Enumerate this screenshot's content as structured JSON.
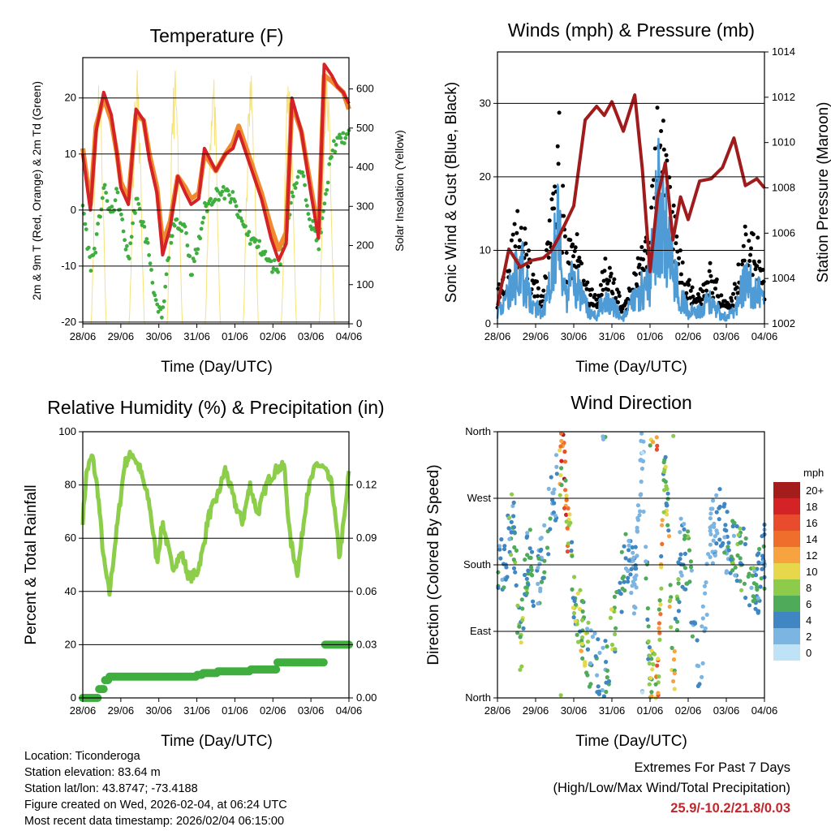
{
  "footer": {
    "location": "Location: Ticonderoga",
    "elevation": "Station elevation: 83.64 m",
    "latlon": "Station lat/lon: 43.8747; -73.4188",
    "created": "Figure created on Wed, 2026-02-04, at 06:24 UTC",
    "recent": "Most recent data timestamp: 2026/02/04 06:15:00",
    "extremes_title": "Extremes For Past 7 Days",
    "extremes_sub": "(High/Low/Max Wind/Total Precipitation)",
    "extremes_values": "25.9/-10.2/21.8/0.03"
  },
  "colors": {
    "red": "#d42327",
    "orange": "#f08a2e",
    "green": "#3fae3f",
    "yellow": "#f6e27a",
    "black": "#000000",
    "blue": "#4f9bd6",
    "maroon": "#a01c1c",
    "lightgreen": "#8ccd4a"
  },
  "chart_data": [
    {
      "type": "line",
      "title": "Temperature (F)",
      "xlabel": "Time (Day/UTC)",
      "ylabel": "2m & 9m T (Red, Orange) & 2m Td (Green)",
      "ylabel_right": "Solar Insolation (Yellow)",
      "categories": [
        "28/06",
        "29/06",
        "30/06",
        "31/06",
        "01/06",
        "02/06",
        "03/06",
        "04/06"
      ],
      "ylim": [
        -20,
        27
      ],
      "yticks": [
        "20",
        "10",
        "0",
        "-10",
        "-20"
      ],
      "ylim_right": [
        0,
        680
      ],
      "yticks_right": [
        "600",
        "500",
        "400",
        "300",
        "200",
        "100",
        "0"
      ],
      "x": [
        0,
        0.2,
        0.35,
        0.55,
        0.75,
        0.9,
        1.0,
        1.2,
        1.4,
        1.6,
        1.75,
        1.95,
        2.1,
        2.3,
        2.5,
        2.7,
        2.85,
        3.05,
        3.2,
        3.5,
        3.75,
        3.95,
        4.1,
        4.4,
        4.7,
        4.95,
        5.15,
        5.35,
        5.5,
        5.75,
        6.0,
        6.2,
        6.35,
        6.55,
        6.7,
        6.85,
        7.0
      ],
      "series": [
        {
          "name": "2m T",
          "values": [
            10,
            0,
            14,
            21,
            17,
            10,
            4,
            1,
            18,
            16,
            9,
            3,
            -8,
            -3,
            6,
            3,
            1,
            2,
            11,
            7,
            10,
            11,
            14,
            8,
            2,
            -5,
            -9,
            -6,
            20,
            14,
            3,
            -5,
            26,
            24,
            22,
            21,
            19
          ]
        },
        {
          "name": "9m T",
          "values": [
            11,
            1,
            15,
            20,
            16,
            10,
            5,
            2,
            17,
            16,
            10,
            4,
            -6,
            -2,
            6,
            4,
            2,
            3,
            10,
            7,
            10,
            12,
            15,
            9,
            3,
            -3,
            -7,
            -4,
            19,
            14,
            4,
            -4,
            24,
            23,
            22,
            21,
            18
          ]
        },
        {
          "name": "2m Td",
          "values": [
            1,
            -10,
            -6,
            4,
            -1,
            3,
            -1,
            -9,
            2,
            -3,
            -8,
            -18,
            -19,
            -5,
            -2,
            -3,
            -11,
            -6,
            0,
            3,
            3,
            2,
            -1,
            -5,
            -7,
            -10,
            -10,
            -4,
            3,
            7,
            -2,
            -6,
            0,
            11,
            12,
            13,
            13
          ]
        },
        {
          "name": "Solar Insolation",
          "values": [
            0,
            0,
            600,
            0,
            0,
            610,
            0,
            0,
            620,
            0,
            0,
            0,
            0,
            580,
            0,
            0,
            570,
            0,
            0,
            0,
            600,
            0,
            590,
            0,
            0,
            580,
            0,
            0,
            600,
            0,
            0,
            0,
            590,
            0,
            0,
            0,
            0
          ]
        }
      ]
    },
    {
      "type": "scatter",
      "title": "Winds (mph) & Pressure (mb)",
      "xlabel": "Time (Day/UTC)",
      "ylabel": "Sonic Wind & Gust (Blue, Black)",
      "ylabel_right": "Station Pressure (Maroon)",
      "categories": [
        "28/06",
        "29/06",
        "30/06",
        "31/06",
        "01/06",
        "02/06",
        "03/06",
        "04/06"
      ],
      "ylim": [
        0,
        37
      ],
      "yticks": [
        "30",
        "20",
        "10",
        "0"
      ],
      "ylim_right": [
        1002,
        1014
      ],
      "yticks_right": [
        "1014",
        "1012",
        "1010",
        "1008",
        "1006",
        "1004",
        "1002"
      ],
      "x": [
        0,
        0.3,
        0.6,
        0.9,
        1.2,
        1.4,
        1.6,
        1.8,
        2.0,
        2.3,
        2.6,
        2.8,
        3.0,
        3.3,
        3.6,
        3.8,
        4.0,
        4.2,
        4.4,
        4.6,
        4.8,
        5.0,
        5.3,
        5.6,
        5.9,
        6.2,
        6.5,
        6.8,
        7.0
      ],
      "series": [
        {
          "name": "Gust",
          "values": [
            4,
            8,
            14,
            6,
            3,
            18,
            25,
            8,
            12,
            5,
            3,
            8,
            6,
            2,
            6,
            9,
            10,
            28,
            22,
            14,
            8,
            5,
            4,
            7,
            3,
            4,
            11,
            10,
            5
          ]
        },
        {
          "name": "Wind",
          "values": [
            2,
            5,
            10,
            3,
            2,
            10,
            16,
            4,
            8,
            3,
            1,
            5,
            3,
            1,
            4,
            6,
            7,
            20,
            15,
            9,
            5,
            2,
            2,
            4,
            1,
            2,
            7,
            6,
            3
          ]
        },
        {
          "name": "Pressure",
          "values": [
            1002.8,
            1005.3,
            1004.5,
            1004.8,
            1004.9,
            1005.2,
            1005.8,
            1006.5,
            1007.2,
            1011,
            1011.6,
            1011.2,
            1011.8,
            1010.5,
            1012.1,
            1008.8,
            1004.3,
            1007.6,
            1009.1,
            1005.7,
            1007.6,
            1006.6,
            1008.3,
            1008.4,
            1008.9,
            1010.2,
            1008.1,
            1008.4,
            1008
          ]
        }
      ]
    },
    {
      "type": "line",
      "title": "Relative Humidity (%) & Precipitation (in)",
      "xlabel": "Time (Day/UTC)",
      "ylabel": "Percent & Total Rainfall",
      "categories": [
        "28/06",
        "29/06",
        "30/06",
        "31/06",
        "01/06",
        "02/06",
        "03/06",
        "04/06"
      ],
      "ylim": [
        0,
        100
      ],
      "yticks": [
        "100",
        "80",
        "60",
        "40",
        "20",
        "0"
      ],
      "ylim_right": [
        0,
        0.15
      ],
      "yticks_right": [
        "0.12",
        "0.09",
        "0.06",
        "0.03",
        "0.00"
      ],
      "x": [
        0,
        0.1,
        0.25,
        0.4,
        0.55,
        0.7,
        0.85,
        1.1,
        1.3,
        1.5,
        1.75,
        1.95,
        2.1,
        2.35,
        2.6,
        2.8,
        3.0,
        3.15,
        3.3,
        3.55,
        3.75,
        4.0,
        4.2,
        4.4,
        4.6,
        4.85,
        5.1,
        5.3,
        5.45,
        5.65,
        5.9,
        6.15,
        6.35,
        6.55,
        6.75,
        6.9,
        7.0
      ],
      "series": [
        {
          "name": "RH",
          "values": [
            67,
            85,
            91,
            77,
            52,
            39,
            58,
            88,
            92,
            86,
            73,
            51,
            66,
            49,
            54,
            45,
            47,
            55,
            68,
            76,
            86,
            73,
            66,
            80,
            69,
            81,
            86,
            87,
            60,
            47,
            77,
            88,
            86,
            80,
            53,
            70,
            85
          ]
        },
        {
          "name": "Precipitation",
          "values": [
            0,
            0,
            0,
            0.005,
            0.01,
            0.012,
            0.012,
            0.012,
            0.012,
            0.012,
            0.012,
            0.012,
            0.012,
            0.012,
            0.012,
            0.012,
            0.013,
            0.014,
            0.014,
            0.015,
            0.015,
            0.015,
            0.015,
            0.016,
            0.016,
            0.016,
            0.02,
            0.02,
            0.02,
            0.02,
            0.02,
            0.02,
            0.03,
            0.03,
            0.03,
            0.03,
            0.03
          ]
        }
      ]
    },
    {
      "type": "scatter",
      "title": "Wind Direction",
      "xlabel": "Time (Day/UTC)",
      "ylabel": "Direction (Colored By Speed)",
      "categories": [
        "28/06",
        "29/06",
        "30/06",
        "31/06",
        "01/06",
        "02/06",
        "03/06",
        "04/06"
      ],
      "ylim": [
        0,
        360
      ],
      "yticks": [
        "North",
        "West",
        "South",
        "East",
        "North"
      ],
      "legend_title": "mph",
      "legend_labels": [
        "20+",
        "18",
        "16",
        "14",
        "12",
        "10",
        "8",
        "6",
        "4",
        "2",
        "0"
      ],
      "legend_colors": [
        "#a51c1c",
        "#d42327",
        "#e84c2c",
        "#f06e2c",
        "#f6a340",
        "#e6d84a",
        "#8ecb4a",
        "#4fab5a",
        "#3f86c2",
        "#7cb5e2",
        "#bfe3f6"
      ],
      "x": [
        0.2,
        0.4,
        0.6,
        0.8,
        1.0,
        1.3,
        1.6,
        1.7,
        2.0,
        2.2,
        2.4,
        2.8,
        3.0,
        3.4,
        3.6,
        3.8,
        4.0,
        4.2,
        4.4,
        4.6,
        4.8,
        5.0,
        5.3,
        5.6,
        5.8,
        6.0,
        6.3,
        6.6,
        6.8,
        7.0
      ],
      "series": [
        {
          "name": "Direction",
          "values": [
            190,
            250,
            60,
            200,
            140,
            230,
            300,
            330,
            140,
            100,
            60,
            30,
            80,
            200,
            150,
            350,
            20,
            15,
            355,
            10,
            200,
            180,
            30,
            220,
            250,
            210,
            200,
            170,
            150,
            190
          ]
        },
        {
          "name": "Speed",
          "values": [
            5,
            7,
            9,
            6,
            4,
            5,
            4,
            18,
            8,
            11,
            6,
            4,
            10,
            4,
            3,
            2,
            8,
            14,
            9,
            12,
            4,
            8,
            3,
            2,
            4,
            5,
            7,
            6,
            7,
            5
          ]
        }
      ]
    }
  ]
}
